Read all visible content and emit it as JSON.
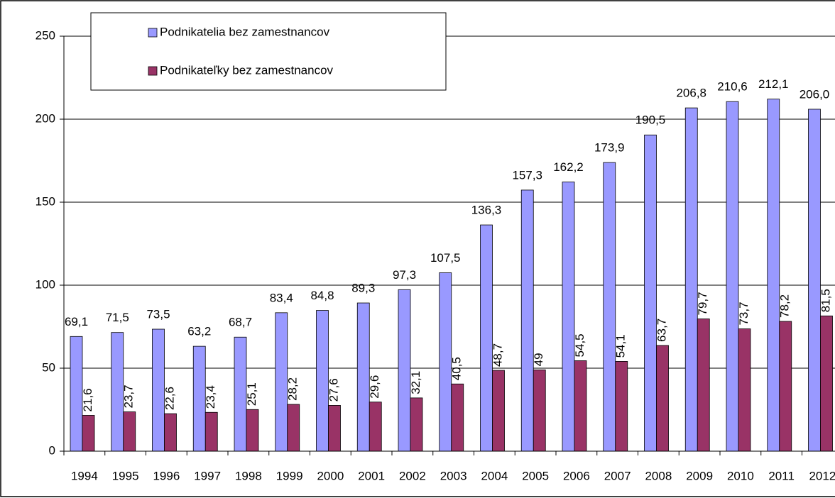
{
  "chart_data": {
    "type": "bar",
    "categories": [
      "1994",
      "1995",
      "1996",
      "1997",
      "1998",
      "1999",
      "2000",
      "2001",
      "2002",
      "2003",
      "2004",
      "2005",
      "2006",
      "2007",
      "2008",
      "2009",
      "2010",
      "2011",
      "2012"
    ],
    "series": [
      {
        "name": "Podnikatelia bez zamestnancov",
        "color": "#9999ff",
        "values": [
          69.1,
          71.5,
          73.5,
          63.2,
          68.7,
          83.4,
          84.8,
          89.3,
          97.3,
          107.5,
          136.3,
          157.3,
          162.2,
          173.9,
          190.5,
          206.8,
          210.6,
          212.1,
          206.0
        ],
        "value_labels": [
          "69,1",
          "71,5",
          "73,5",
          "63,2",
          "68,7",
          "83,4",
          "84,8",
          "89,3",
          "97,3",
          "107,5",
          "136,3",
          "157,3",
          "162,2",
          "173,9",
          "190,5",
          "206,8",
          "210,6",
          "212,1",
          "206,0"
        ]
      },
      {
        "name": "Podnikateľky bez zamestnancov",
        "color": "#993366",
        "values": [
          21.6,
          23.7,
          22.6,
          23.4,
          25.1,
          28.2,
          27.6,
          29.6,
          32.1,
          40.5,
          48.7,
          49,
          54.5,
          54.1,
          63.7,
          79.7,
          73.7,
          78.2,
          81.5
        ],
        "value_labels": [
          "21,6",
          "23,7",
          "22,6",
          "23,4",
          "25,1",
          "28,2",
          "27,6",
          "29,6",
          "32,1",
          "40,5",
          "48,7",
          "49",
          "54,5",
          "54,1",
          "63,7",
          "79,7",
          "73,7",
          "78,2",
          "81,5"
        ]
      }
    ],
    "ylim": [
      0,
      250
    ],
    "yticks": [
      0,
      50,
      100,
      150,
      200,
      250
    ],
    "grid": true,
    "legend": "top-left"
  }
}
